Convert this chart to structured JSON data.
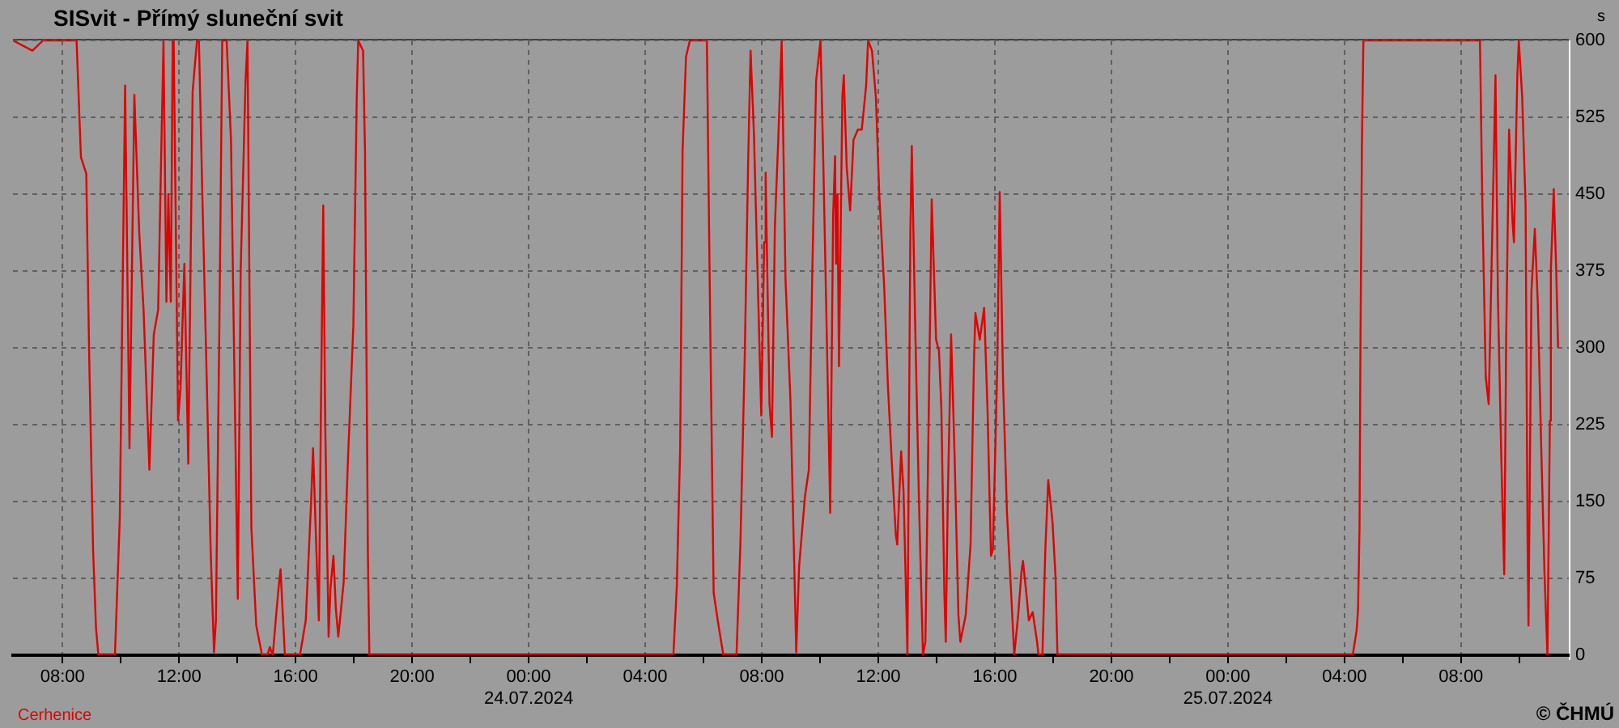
{
  "chart_data": {
    "type": "line",
    "title": "SISvit - Přímý sluneční svit",
    "ylabel": "s",
    "annotations": [
      "Cerhenice",
      "© ČHMÚ"
    ],
    "grid": true,
    "legend": false,
    "xlim": [
      "2024-07-23T06:18",
      "2024-07-25T11:42"
    ],
    "xticks": [
      {
        "value": "2024-07-23T08:00",
        "label": "08:00"
      },
      {
        "value": "2024-07-23T10:00",
        "label": null
      },
      {
        "value": "2024-07-23T12:00",
        "label": "12:00"
      },
      {
        "value": "2024-07-23T14:00",
        "label": null
      },
      {
        "value": "2024-07-23T16:00",
        "label": "16:00"
      },
      {
        "value": "2024-07-23T18:00",
        "label": null
      },
      {
        "value": "2024-07-23T20:00",
        "label": "20:00"
      },
      {
        "value": "2024-07-23T22:00",
        "label": null
      },
      {
        "value": "2024-07-24T00:00",
        "label": "00:00\n24.07.2024"
      },
      {
        "value": "2024-07-24T02:00",
        "label": null
      },
      {
        "value": "2024-07-24T04:00",
        "label": "04:00"
      },
      {
        "value": "2024-07-24T06:00",
        "label": null
      },
      {
        "value": "2024-07-24T08:00",
        "label": "08:00"
      },
      {
        "value": "2024-07-24T10:00",
        "label": null
      },
      {
        "value": "2024-07-24T12:00",
        "label": "12:00"
      },
      {
        "value": "2024-07-24T14:00",
        "label": null
      },
      {
        "value": "2024-07-24T16:00",
        "label": "16:00"
      },
      {
        "value": "2024-07-24T18:00",
        "label": null
      },
      {
        "value": "2024-07-24T20:00",
        "label": "20:00"
      },
      {
        "value": "2024-07-24T22:00",
        "label": null
      },
      {
        "value": "2024-07-25T00:00",
        "label": "00:00\n25.07.2024"
      },
      {
        "value": "2024-07-25T02:00",
        "label": null
      },
      {
        "value": "2024-07-25T04:00",
        "label": "04:00"
      },
      {
        "value": "2024-07-25T06:00",
        "label": null
      },
      {
        "value": "2024-07-25T08:00",
        "label": "08:00"
      },
      {
        "value": "2024-07-25T10:00",
        "label": null
      }
    ],
    "ylim": [
      0,
      600
    ],
    "yticks": [
      0,
      75,
      150,
      225,
      300,
      375,
      450,
      525,
      600
    ],
    "x": [
      "2024-07-23T06:18",
      "2024-07-23T06:58",
      "2024-07-23T07:20",
      "2024-07-23T08:29",
      "2024-07-23T08:38",
      "2024-07-23T08:49",
      "2024-07-23T08:55",
      "2024-07-23T09:03",
      "2024-07-23T09:09",
      "2024-07-23T09:14",
      "2024-07-23T09:48",
      "2024-07-23T09:58",
      "2024-07-23T10:09",
      "2024-07-23T10:18",
      "2024-07-23T10:28",
      "2024-07-23T10:38",
      "2024-07-23T10:47",
      "2024-07-23T10:59",
      "2024-07-23T11:08",
      "2024-07-23T11:17",
      "2024-07-23T11:28",
      "2024-07-23T11:34",
      "2024-07-23T11:38",
      "2024-07-23T11:43",
      "2024-07-23T11:47",
      "2024-07-23T11:49",
      "2024-07-23T11:58",
      "2024-07-23T12:03",
      "2024-07-23T12:11",
      "2024-07-23T12:19",
      "2024-07-23T12:28",
      "2024-07-23T12:37",
      "2024-07-23T12:41",
      "2024-07-23T12:48",
      "2024-07-23T12:58",
      "2024-07-23T13:05",
      "2024-07-23T13:12",
      "2024-07-23T13:16",
      "2024-07-23T13:23",
      "2024-07-23T13:29",
      "2024-07-23T13:38",
      "2024-07-23T13:47",
      "2024-07-23T13:54",
      "2024-07-23T14:01",
      "2024-07-23T14:07",
      "2024-07-23T14:17",
      "2024-07-23T14:21",
      "2024-07-23T14:29",
      "2024-07-23T14:39",
      "2024-07-23T14:51",
      "2024-07-23T15:02",
      "2024-07-23T15:07",
      "2024-07-23T15:13",
      "2024-07-23T15:24",
      "2024-07-23T15:29",
      "2024-07-23T15:38",
      "2024-07-23T16:09",
      "2024-07-23T16:21",
      "2024-07-23T16:32",
      "2024-07-23T16:36",
      "2024-07-23T16:45",
      "2024-07-23T16:48",
      "2024-07-23T16:52",
      "2024-07-23T16:57",
      "2024-07-23T17:01",
      "2024-07-23T17:08",
      "2024-07-23T17:12",
      "2024-07-23T17:18",
      "2024-07-23T17:23",
      "2024-07-23T17:28",
      "2024-07-23T17:39",
      "2024-07-23T17:48",
      "2024-07-23T17:59",
      "2024-07-23T18:06",
      "2024-07-23T18:09",
      "2024-07-23T18:19",
      "2024-07-23T18:23",
      "2024-07-23T18:26",
      "2024-07-23T18:29",
      "2024-07-23T18:32",
      "2024-07-24T04:58",
      "2024-07-24T05:05",
      "2024-07-24T05:12",
      "2024-07-24T05:17",
      "2024-07-24T05:24",
      "2024-07-24T05:32",
      "2024-07-24T06:07",
      "2024-07-24T06:14",
      "2024-07-24T06:21",
      "2024-07-24T06:31",
      "2024-07-24T06:41",
      "2024-07-24T07:08",
      "2024-07-24T07:16",
      "2024-07-24T07:25",
      "2024-07-24T07:32",
      "2024-07-24T07:37",
      "2024-07-24T07:44",
      "2024-07-24T07:52",
      "2024-07-24T07:59",
      "2024-07-24T08:05",
      "2024-07-24T08:08",
      "2024-07-24T08:16",
      "2024-07-24T08:21",
      "2024-07-24T08:27",
      "2024-07-24T08:34",
      "2024-07-24T08:41",
      "2024-07-24T08:49",
      "2024-07-24T08:59",
      "2024-07-24T09:06",
      "2024-07-24T09:11",
      "2024-07-24T09:17",
      "2024-07-24T09:29",
      "2024-07-24T09:37",
      "2024-07-24T09:44",
      "2024-07-24T09:52",
      "2024-07-24T10:01",
      "2024-07-24T10:07",
      "2024-07-24T10:15",
      "2024-07-24T10:21",
      "2024-07-24T10:27",
      "2024-07-24T10:31",
      "2024-07-24T10:33",
      "2024-07-24T10:36",
      "2024-07-24T10:39",
      "2024-07-24T10:46",
      "2024-07-24T10:49",
      "2024-07-24T10:55",
      "2024-07-24T11:02",
      "2024-07-24T11:09",
      "2024-07-24T11:18",
      "2024-07-24T11:26",
      "2024-07-24T11:35",
      "2024-07-24T11:39",
      "2024-07-24T11:47",
      "2024-07-24T11:55",
      "2024-07-24T12:02",
      "2024-07-24T12:12",
      "2024-07-24T12:20",
      "2024-07-24T12:28",
      "2024-07-24T12:36",
      "2024-07-24T12:39",
      "2024-07-24T12:47",
      "2024-07-24T12:52",
      "2024-07-24T12:56",
      "2024-07-24T13:00",
      "2024-07-24T13:06",
      "2024-07-24T13:09",
      "2024-07-24T13:16",
      "2024-07-24T13:24",
      "2024-07-24T13:32",
      "2024-07-24T13:37",
      "2024-07-24T13:44",
      "2024-07-24T13:50",
      "2024-07-24T13:59",
      "2024-07-24T14:05",
      "2024-07-24T14:10",
      "2024-07-24T14:16",
      "2024-07-24T14:19",
      "2024-07-24T14:23",
      "2024-07-24T14:30",
      "2024-07-24T14:37",
      "2024-07-24T14:45",
      "2024-07-24T14:49",
      "2024-07-24T15:00",
      "2024-07-24T15:10",
      "2024-07-24T15:17",
      "2024-07-24T15:20",
      "2024-07-24T15:29",
      "2024-07-24T15:38",
      "2024-07-24T15:45",
      "2024-07-24T15:52",
      "2024-07-24T15:56",
      "2024-07-24T16:05",
      "2024-07-24T16:10",
      "2024-07-24T16:17",
      "2024-07-24T16:25",
      "2024-07-24T16:33",
      "2024-07-24T16:40",
      "2024-07-24T16:48",
      "2024-07-24T16:55",
      "2024-07-24T16:58",
      "2024-07-24T17:06",
      "2024-07-24T17:10",
      "2024-07-24T17:18",
      "2024-07-24T17:27",
      "2024-07-24T17:30",
      "2024-07-24T17:38",
      "2024-07-24T17:44",
      "2024-07-24T17:50",
      "2024-07-24T17:59",
      "2024-07-24T18:05",
      "2024-07-24T18:09",
      "2024-07-25T04:17",
      "2024-07-25T04:25",
      "2024-07-25T04:28",
      "2024-07-25T04:31",
      "2024-07-25T04:33",
      "2024-07-25T04:36",
      "2024-07-25T04:39",
      "2024-07-25T08:39",
      "2024-07-25T08:44",
      "2024-07-25T08:51",
      "2024-07-25T08:57",
      "2024-07-25T09:04",
      "2024-07-25T09:11",
      "2024-07-25T09:16",
      "2024-07-25T09:23",
      "2024-07-25T09:29",
      "2024-07-25T09:33",
      "2024-07-25T09:39",
      "2024-07-25T09:46",
      "2024-07-25T09:49",
      "2024-07-25T09:56",
      "2024-07-25T09:59",
      "2024-07-25T10:06",
      "2024-07-25T10:13",
      "2024-07-25T10:17",
      "2024-07-25T10:19",
      "2024-07-25T10:25",
      "2024-07-25T10:32",
      "2024-07-25T10:38",
      "2024-07-25T10:45",
      "2024-07-25T10:52",
      "2024-07-25T10:58",
      "2024-07-25T11:03",
      "2024-07-25T11:05",
      "2024-07-25T11:11",
      "2024-07-25T11:16",
      "2024-07-25T11:20"
    ],
    "series": [
      {
        "color": "#e00000",
        "values": [
          600,
          590,
          600,
          600,
          486,
          470,
          292,
          103,
          27,
          0,
          0,
          134,
          556,
          202,
          547,
          413,
          337,
          181,
          313,
          337,
          600,
          345,
          450,
          345,
          600,
          600,
          229,
          260,
          382,
          187,
          550,
          600,
          600,
          450,
          250,
          105,
          3,
          34,
          318,
          600,
          600,
          503,
          276,
          55,
          376,
          561,
          600,
          124,
          29,
          0,
          0,
          8,
          0,
          61,
          84,
          0,
          0,
          34,
          150,
          202,
          71,
          34,
          229,
          439,
          229,
          18,
          66,
          97,
          45,
          18,
          71,
          192,
          322,
          545,
          600,
          590,
          492,
          292,
          97,
          0,
          0,
          66,
          202,
          492,
          584,
          600,
          600,
          318,
          61,
          29,
          0,
          0,
          108,
          292,
          482,
          590,
          508,
          361,
          234,
          403,
          471,
          245,
          213,
          418,
          503,
          600,
          366,
          250,
          108,
          3,
          87,
          155,
          181,
          371,
          561,
          600,
          476,
          287,
          139,
          429,
          487,
          382,
          450,
          282,
          545,
          566,
          476,
          434,
          503,
          513,
          513,
          556,
          600,
          590,
          545,
          450,
          361,
          261,
          187,
          118,
          108,
          199,
          160,
          82,
          0,
          413,
          497,
          322,
          145,
          0,
          13,
          239,
          445,
          308,
          297,
          239,
          61,
          13,
          150,
          313,
          197,
          39,
          13,
          39,
          108,
          287,
          334,
          308,
          339,
          239,
          97,
          103,
          282,
          452,
          266,
          139,
          66,
          0,
          39,
          82,
          92,
          55,
          34,
          42,
          13,
          0,
          0,
          103,
          171,
          129,
          76,
          0,
          0,
          24,
          45,
          124,
          311,
          500,
          600,
          600,
          439,
          271,
          245,
          403,
          566,
          350,
          192,
          79,
          308,
          513,
          424,
          403,
          566,
          600,
          545,
          439,
          113,
          29,
          355,
          416,
          345,
          207,
          79,
          0,
          229,
          376,
          455,
          376,
          300
        ]
      }
    ]
  }
}
